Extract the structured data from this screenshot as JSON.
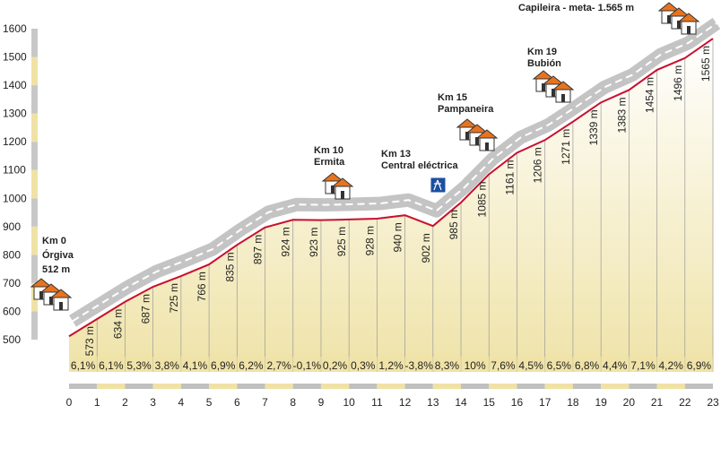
{
  "chart_data": {
    "type": "area",
    "x": [
      0,
      1,
      2,
      3,
      4,
      5,
      6,
      7,
      8,
      9,
      10,
      11,
      12,
      13,
      14,
      15,
      16,
      17,
      18,
      19,
      20,
      21,
      22,
      23
    ],
    "values": [
      512,
      573,
      634,
      687,
      725,
      766,
      835,
      897,
      924,
      923,
      925,
      928,
      940,
      902,
      985,
      1085,
      1161,
      1206,
      1271,
      1339,
      1383,
      1454,
      1496,
      1565
    ],
    "value_labels": [
      null,
      "573 m",
      "634 m",
      "687 m",
      "725 m",
      "766 m",
      "835 m",
      "897 m",
      "924 m",
      "923 m",
      "925 m",
      "928 m",
      "940 m",
      "902 m",
      "985 m",
      "1085 m",
      "1161 m",
      "1206 m",
      "1271 m",
      "1339 m",
      "1383 m",
      "1454 m",
      "1496 m",
      "1565 m"
    ],
    "segment_grades": [
      6.1,
      6.1,
      5.3,
      3.8,
      4.1,
      6.9,
      6.2,
      2.7,
      -0.1,
      0.2,
      0.3,
      1.2,
      -3.8,
      8.3,
      10,
      7.6,
      4.5,
      6.5,
      6.8,
      4.4,
      7.1,
      4.2,
      6.9
    ],
    "segment_grade_labels": [
      "6,1%",
      "6,1%",
      "5,3%",
      "3,8%",
      "4,1%",
      "6,9%",
      "6,2%",
      "2,7%",
      "-0,1%",
      "0,2%",
      "0,3%",
      "1,2%",
      "-3,8%",
      "8,3%",
      "10%",
      "7,6%",
      "4,5%",
      "6,5%",
      "6,8%",
      "4,4%",
      "7,1%",
      "4,2%",
      "6,9%"
    ],
    "color": "#c8102e",
    "xlim": [
      0,
      23
    ],
    "xticks": [
      0,
      1,
      2,
      3,
      4,
      5,
      6,
      7,
      8,
      9,
      10,
      11,
      12,
      13,
      14,
      15,
      16,
      17,
      18,
      19,
      20,
      21,
      22,
      23
    ],
    "ylim": [
      500,
      1600
    ],
    "yticks": [
      500,
      600,
      700,
      800,
      900,
      1000,
      1100,
      1200,
      1300,
      1400,
      1500,
      1600
    ],
    "annotations": [
      {
        "x": 0,
        "lines": [
          "Km 0",
          "Órgiva",
          "512 m"
        ]
      },
      {
        "x": 10,
        "lines": [
          "Km 10",
          "Ermita"
        ]
      },
      {
        "x": 13,
        "lines": [
          "Km 13",
          "Central eléctrica"
        ]
      },
      {
        "x": 15,
        "lines": [
          "Km 15",
          "Pampaneira"
        ]
      },
      {
        "x": 19,
        "lines": [
          "Km 19",
          "Bubión"
        ]
      },
      {
        "x": 23,
        "lines": [
          "Capileira - meta- 1.565 m"
        ]
      }
    ]
  }
}
